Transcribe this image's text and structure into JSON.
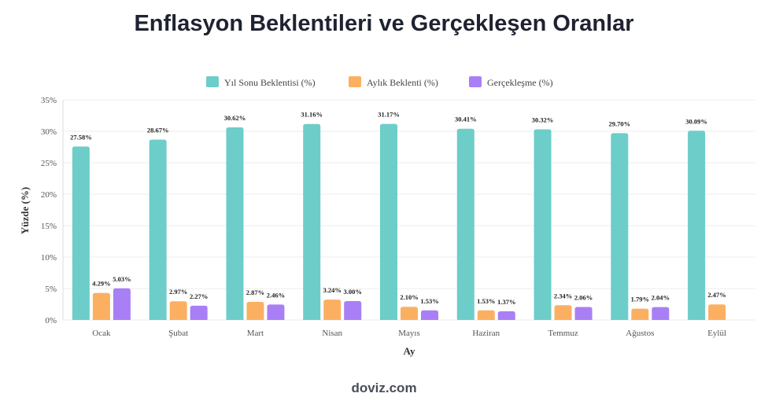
{
  "title": "Enflasyon Beklentileri ve Gerçekleşen Oranlar",
  "source": "doviz.com",
  "chart_data": {
    "type": "bar",
    "xlabel": "Ay",
    "ylabel": "Yüzde (%)",
    "ylim": [
      0,
      35
    ],
    "yticks": [
      "0%",
      "5%",
      "10%",
      "15%",
      "20%",
      "25%",
      "30%",
      "35%"
    ],
    "grid": true,
    "legend_position": "top",
    "categories": [
      "Ocak",
      "Şubat",
      "Mart",
      "Nisan",
      "Mayıs",
      "Haziran",
      "Temmuz",
      "Ağustos",
      "Eylül"
    ],
    "series": [
      {
        "name": "Yıl Sonu Beklentisi (%)",
        "color": "#6dcdc9",
        "values": [
          27.58,
          28.67,
          30.62,
          31.16,
          31.17,
          30.41,
          30.32,
          29.7,
          30.09
        ],
        "labels": [
          "27.58%",
          "28.67%",
          "30.62%",
          "31.16%",
          "31.17%",
          "30.41%",
          "30.32%",
          "29.70%",
          "30.09%"
        ]
      },
      {
        "name": "Aylık Beklenti (%)",
        "color": "#fbb061",
        "values": [
          4.29,
          2.97,
          2.87,
          3.24,
          2.1,
          1.53,
          2.34,
          1.79,
          2.47
        ],
        "labels": [
          "4.29%",
          "2.97%",
          "2.87%",
          "3.24%",
          "2.10%",
          "1.53%",
          "2.34%",
          "1.79%",
          "2.47%"
        ]
      },
      {
        "name": "Gerçekleşme (%)",
        "color": "#a97ff5",
        "values": [
          5.03,
          2.27,
          2.46,
          3.0,
          1.53,
          1.37,
          2.06,
          2.04,
          null
        ],
        "labels": [
          "5.03%",
          "2.27%",
          "2.46%",
          "3.00%",
          "1.53%",
          "1.37%",
          "2.06%",
          "2.04%",
          null
        ]
      }
    ]
  }
}
